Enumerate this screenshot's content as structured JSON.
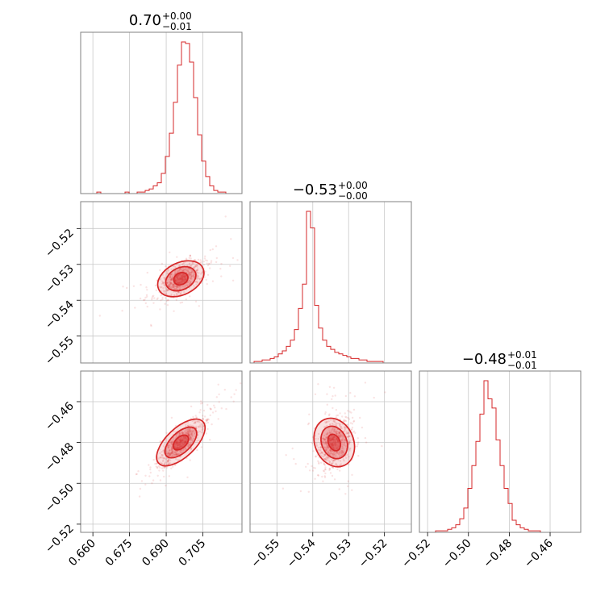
{
  "figure": {
    "titles": [
      {
        "main": "0.70",
        "plus": "+0.00",
        "minus": "−0.01"
      },
      {
        "main": "−0.53",
        "plus": "+0.00",
        "minus": "−0.00"
      },
      {
        "main": "−0.48",
        "plus": "+0.01",
        "minus": "−0.01"
      }
    ],
    "colors": {
      "series": "#d62728",
      "frame": "#808080",
      "grid": "#c8c8c8"
    }
  },
  "chart_data": {
    "type": "corner",
    "parameters": [
      {
        "range": [
          0.655,
          0.721
        ],
        "ticks": [
          0.66,
          0.675,
          0.69,
          0.705
        ],
        "tick_labels": [
          "0.660",
          "0.675",
          "0.690",
          "0.705"
        ],
        "median": 0.696,
        "sigma": 0.0045,
        "hist_counts": [
          0,
          0,
          0,
          0,
          1,
          0,
          0,
          0,
          0,
          0,
          0,
          1,
          0,
          0,
          1,
          1,
          2,
          3,
          5,
          7,
          13,
          24,
          39,
          59,
          83,
          98,
          97,
          85,
          62,
          38,
          21,
          11,
          5,
          2,
          1,
          1,
          0,
          0,
          0,
          0
        ]
      },
      {
        "range": [
          -0.5575,
          -0.5125
        ],
        "ticks": [
          -0.55,
          -0.54,
          -0.53,
          -0.52
        ],
        "tick_labels": [
          "−0.55",
          "−0.54",
          "−0.53",
          "−0.52"
        ],
        "median": -0.534,
        "sigma": 0.0025,
        "hist_counts": [
          0,
          1,
          1,
          2,
          2,
          3,
          4,
          6,
          8,
          11,
          15,
          22,
          36,
          52,
          100,
          89,
          38,
          23,
          15,
          11,
          9,
          7,
          6,
          5,
          4,
          3,
          3,
          2,
          2,
          1,
          1,
          1,
          1,
          0,
          0,
          0,
          0,
          0,
          0,
          0
        ]
      },
      {
        "range": [
          -0.524,
          -0.445
        ],
        "ticks": [
          -0.52,
          -0.5,
          -0.48,
          -0.46
        ],
        "tick_labels": [
          "−0.52",
          "−0.50",
          "−0.48",
          "−0.46"
        ],
        "median": -0.48,
        "sigma": 0.006,
        "hist_counts": [
          0,
          0,
          0,
          0,
          1,
          1,
          1,
          2,
          3,
          5,
          9,
          16,
          29,
          44,
          60,
          78,
          100,
          88,
          82,
          61,
          44,
          29,
          19,
          8,
          5,
          3,
          2,
          1,
          1,
          1,
          0,
          0,
          0,
          0,
          0,
          0,
          0,
          0,
          0,
          0
        ]
      }
    ],
    "pairs": [
      {
        "x": 0,
        "y": 1,
        "correlation": 0.6
      },
      {
        "x": 0,
        "y": 2,
        "correlation": 0.85
      },
      {
        "x": 1,
        "y": 2,
        "correlation": 0.3
      }
    ],
    "grid": true,
    "legend": "none"
  }
}
